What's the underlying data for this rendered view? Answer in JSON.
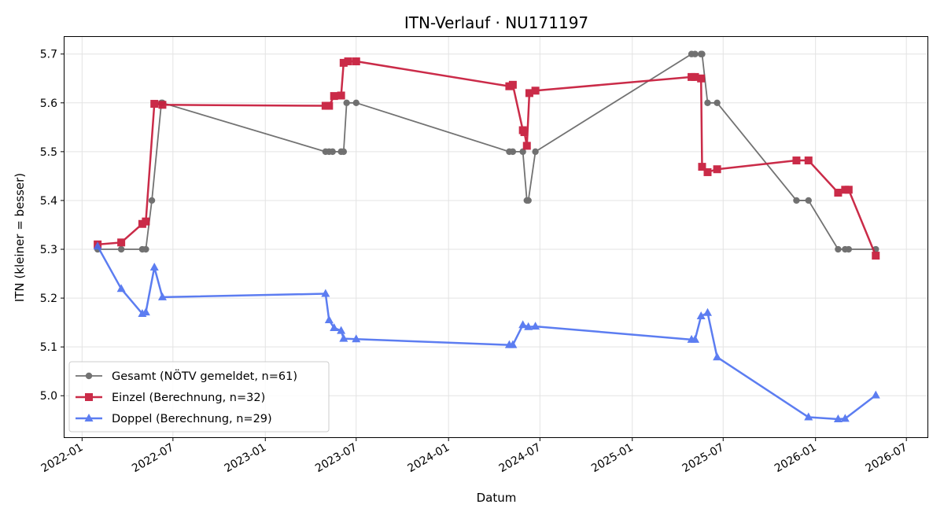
{
  "chart_data": {
    "type": "line",
    "title": "ITN-Verlauf · NU171197",
    "xlabel": "Datum",
    "ylabel": "ITN  (kleiner = besser)",
    "xlim": [
      "2021-11-27",
      "2026-08-12"
    ],
    "ylim": [
      4.915,
      5.735
    ],
    "x_ticks": [
      "2022-01",
      "2022-07",
      "2023-01",
      "2023-07",
      "2024-01",
      "2024-07",
      "2025-01",
      "2025-07",
      "2026-01",
      "2026-07"
    ],
    "y_ticks": [
      5.0,
      5.1,
      5.2,
      5.3,
      5.4,
      5.5,
      5.6,
      5.7
    ],
    "y_tick_labels": [
      "5.0",
      "5.1",
      "5.2",
      "5.3",
      "5.4",
      "5.5",
      "5.6",
      "5.7"
    ],
    "grid": true,
    "legend_position": "lower-left",
    "series": [
      {
        "name": "Gesamt (NÖTV gemeldet, n=61)",
        "color": "#444444",
        "marker": "circle",
        "points": [
          [
            "2022-02-01",
            5.3
          ],
          [
            "2022-03-20",
            5.3
          ],
          [
            "2022-05-01",
            5.3
          ],
          [
            "2022-05-08",
            5.3
          ],
          [
            "2022-05-20",
            5.4
          ],
          [
            "2022-06-08",
            5.6
          ],
          [
            "2022-06-10",
            5.6
          ],
          [
            "2023-05-01",
            5.5
          ],
          [
            "2023-05-08",
            5.5
          ],
          [
            "2023-05-15",
            5.5
          ],
          [
            "2023-06-01",
            5.5
          ],
          [
            "2023-06-06",
            5.5
          ],
          [
            "2023-06-12",
            5.6
          ],
          [
            "2023-07-01",
            5.6
          ],
          [
            "2024-05-01",
            5.5
          ],
          [
            "2024-05-08",
            5.5
          ],
          [
            "2024-05-28",
            5.5
          ],
          [
            "2024-06-05",
            5.4
          ],
          [
            "2024-06-08",
            5.4
          ],
          [
            "2024-06-22",
            5.5
          ],
          [
            "2025-04-29",
            5.7
          ],
          [
            "2025-05-06",
            5.7
          ],
          [
            "2025-05-18",
            5.7
          ],
          [
            "2025-05-20",
            5.7
          ],
          [
            "2025-05-31",
            5.6
          ],
          [
            "2025-06-19",
            5.6
          ],
          [
            "2025-11-24",
            5.4
          ],
          [
            "2025-12-18",
            5.4
          ],
          [
            "2026-02-15",
            5.3
          ],
          [
            "2026-03-01",
            5.3
          ],
          [
            "2026-03-08",
            5.3
          ],
          [
            "2026-05-01",
            5.3
          ]
        ]
      },
      {
        "name": "Einzel (Berechnung, n=32)",
        "color": "#c8203f",
        "marker": "square",
        "points": [
          [
            "2022-02-01",
            5.31
          ],
          [
            "2022-03-20",
            5.314
          ],
          [
            "2022-05-01",
            5.352
          ],
          [
            "2022-05-08",
            5.357
          ],
          [
            "2022-05-25",
            5.598
          ],
          [
            "2022-06-10",
            5.596
          ],
          [
            "2023-05-01",
            5.594
          ],
          [
            "2023-05-08",
            5.594
          ],
          [
            "2023-05-18",
            5.614
          ],
          [
            "2023-06-01",
            5.615
          ],
          [
            "2023-06-06",
            5.682
          ],
          [
            "2023-06-15",
            5.685
          ],
          [
            "2023-07-01",
            5.685
          ],
          [
            "2024-05-01",
            5.634
          ],
          [
            "2024-05-08",
            5.637
          ],
          [
            "2024-05-28",
            5.544
          ],
          [
            "2024-05-31",
            5.54
          ],
          [
            "2024-06-05",
            5.512
          ],
          [
            "2024-06-10",
            5.62
          ],
          [
            "2024-06-22",
            5.625
          ],
          [
            "2025-04-29",
            5.653
          ],
          [
            "2025-05-06",
            5.653
          ],
          [
            "2025-05-18",
            5.65
          ],
          [
            "2025-05-20",
            5.469
          ],
          [
            "2025-05-31",
            5.458
          ],
          [
            "2025-06-19",
            5.464
          ],
          [
            "2025-11-24",
            5.482
          ],
          [
            "2025-12-18",
            5.482
          ],
          [
            "2026-02-15",
            5.416
          ],
          [
            "2026-03-01",
            5.422
          ],
          [
            "2026-03-08",
            5.422
          ],
          [
            "2026-05-01",
            5.287
          ]
        ]
      },
      {
        "name": "Doppel (Berechnung, n=29)",
        "color": "#4b6ff0",
        "marker": "triangle",
        "points": [
          [
            "2022-02-01",
            5.306
          ],
          [
            "2022-03-20",
            5.219
          ],
          [
            "2022-05-01",
            5.168
          ],
          [
            "2022-05-08",
            5.171
          ],
          [
            "2022-05-25",
            5.263
          ],
          [
            "2022-06-10",
            5.202
          ],
          [
            "2023-05-01",
            5.209
          ],
          [
            "2023-05-08",
            5.155
          ],
          [
            "2023-05-18",
            5.139
          ],
          [
            "2023-06-01",
            5.133
          ],
          [
            "2023-06-06",
            5.117
          ],
          [
            "2023-07-01",
            5.116
          ],
          [
            "2024-05-01",
            5.104
          ],
          [
            "2024-05-08",
            5.104
          ],
          [
            "2024-05-28",
            5.145
          ],
          [
            "2024-06-08",
            5.141
          ],
          [
            "2024-06-22",
            5.142
          ],
          [
            "2025-04-29",
            5.115
          ],
          [
            "2025-05-06",
            5.115
          ],
          [
            "2025-05-18",
            5.163
          ],
          [
            "2025-05-31",
            5.17
          ],
          [
            "2025-06-19",
            5.079
          ],
          [
            "2025-12-18",
            4.956
          ],
          [
            "2026-02-15",
            4.952
          ],
          [
            "2026-03-01",
            4.953
          ],
          [
            "2026-05-01",
            5.001
          ]
        ]
      }
    ]
  }
}
